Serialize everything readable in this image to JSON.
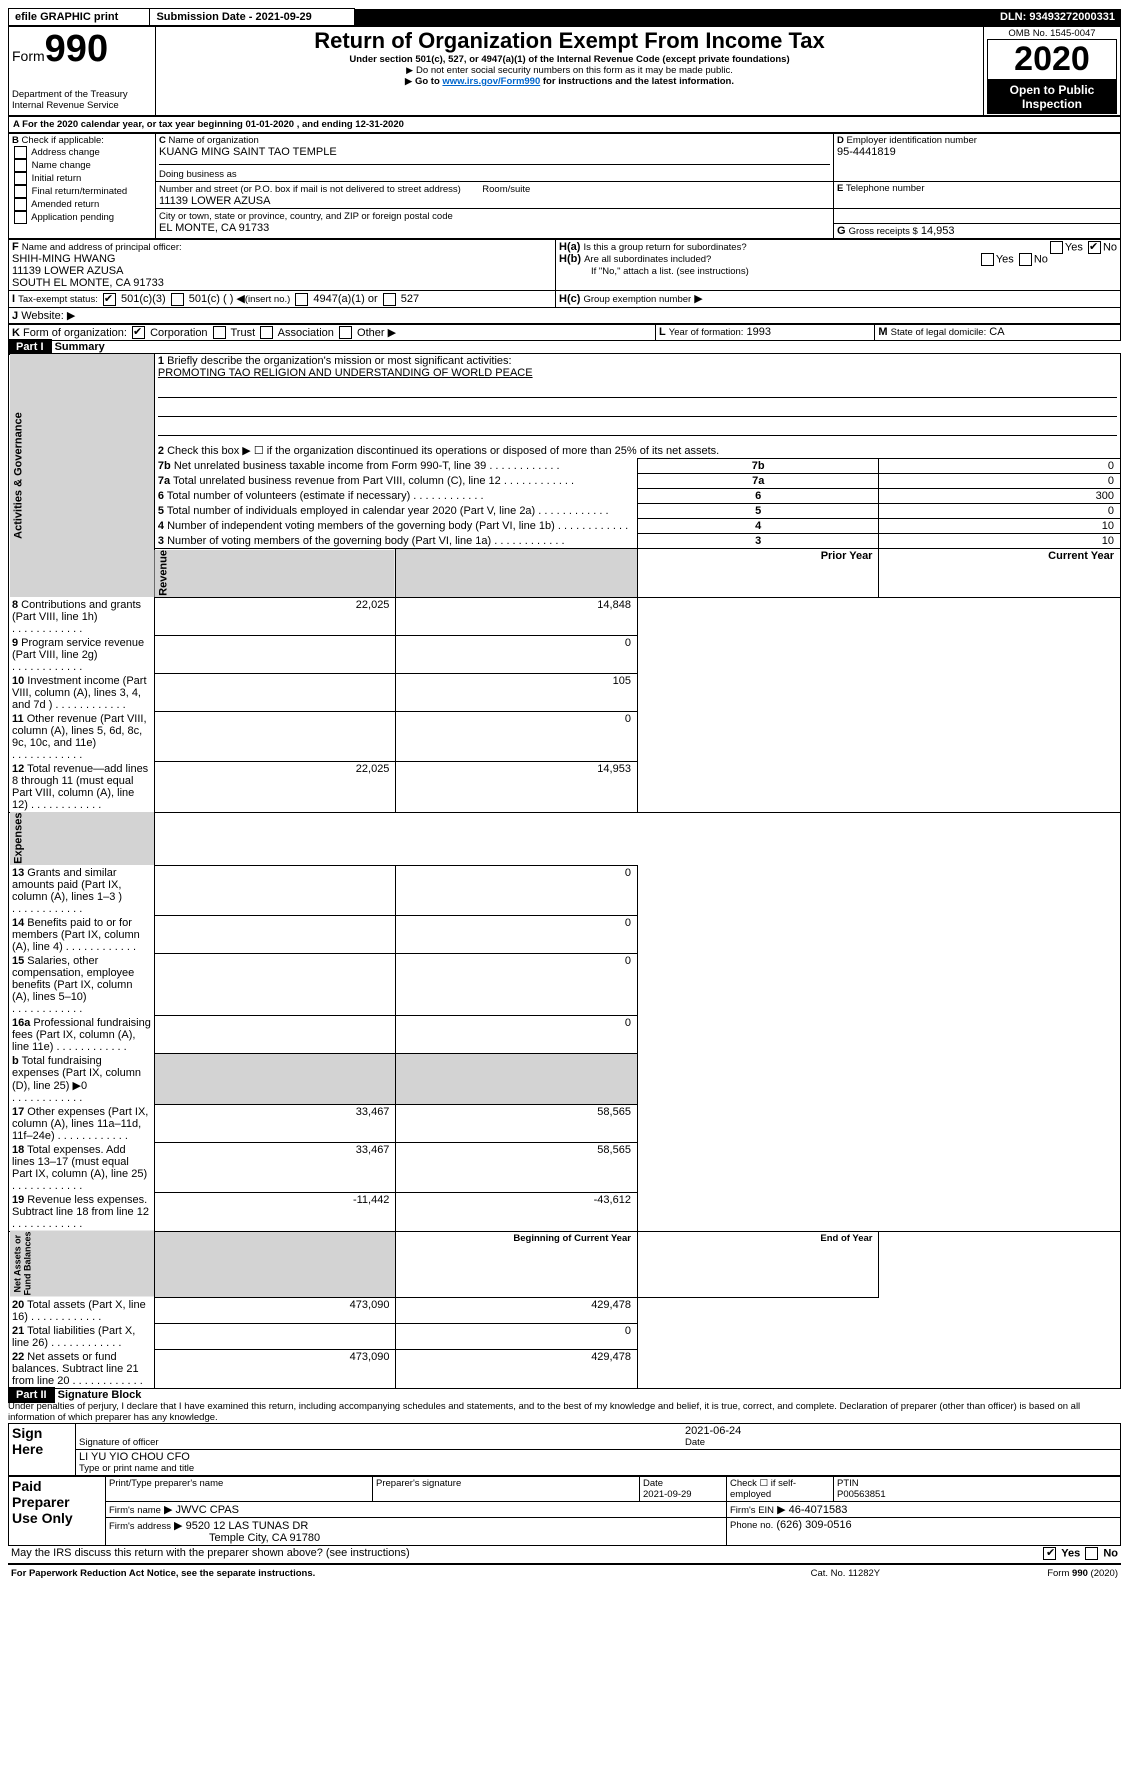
{
  "topbar": {
    "efile": "efile GRAPHIC print",
    "subdate_lbl": "Submission Date - 2021-09-29",
    "dln": "DLN: 93493272000331"
  },
  "header": {
    "form_small": "Form",
    "form_big": "990",
    "title": "Return of Organization Exempt From Income Tax",
    "sub1": "Under section 501(c), 527, or 4947(a)(1) of the Internal Revenue Code (except private foundations)",
    "sub2": "Do not enter social security numbers on this form as it may be made public.",
    "sub3": "Go to www.irs.gov/Form990 for instructions and the latest information.",
    "dept": "Department of the Treasury\nInternal Revenue Service",
    "omb": "OMB No. 1545-0047",
    "year": "2020",
    "open": "Open to Public\nInspection"
  },
  "A": {
    "line": "For the 2020 calendar year, or tax year beginning 01-01-2020    , and ending 12-31-2020"
  },
  "B": {
    "lbl": "Check if applicable:",
    "items": [
      "Address change",
      "Name change",
      "Initial return",
      "Final return/terminated",
      "Amended return",
      "Application pending"
    ]
  },
  "C": {
    "name_lbl": "Name of organization",
    "name": "KUANG MING SAINT TAO TEMPLE",
    "dba_lbl": "Doing business as",
    "addr_lbl": "Number and street (or P.O. box if mail is not delivered to street address)",
    "room_lbl": "Room/suite",
    "addr": "11139 LOWER AZUSA",
    "city_lbl": "City or town, state or province, country, and ZIP or foreign postal code",
    "city": "EL MONTE, CA  91733"
  },
  "D": {
    "lbl": "Employer identification number",
    "val": "95-4441819"
  },
  "E": {
    "lbl": "Telephone number"
  },
  "G": {
    "lbl": "Gross receipts $",
    "val": "14,953"
  },
  "F": {
    "lbl": "Name and address of principal officer:",
    "name": "SHIH-MING HWANG",
    "l1": "11139 LOWER AZUSA",
    "l2": "SOUTH EL MONTE, CA  91733"
  },
  "H": {
    "a": "Is this a group return for subordinates?",
    "b": "Are all subordinates included?",
    "bnote": "If \"No,\" attach a list. (see instructions)",
    "c": "Group exemption number"
  },
  "I": {
    "lbl": "Tax-exempt status:",
    "c1": "501(c)(3)",
    "c2": "501(c) (   )",
    "c2note": "(insert no.)",
    "c3": "4947(a)(1) or",
    "c4": "527"
  },
  "J": {
    "lbl": "Website:"
  },
  "K": {
    "lbl": "Form of organization:",
    "c1": "Corporation",
    "c2": "Trust",
    "c3": "Association",
    "c4": "Other"
  },
  "L": {
    "lbl": "Year of formation:",
    "val": "1993"
  },
  "M": {
    "lbl": "State of legal domicile:",
    "val": "CA"
  },
  "partI": {
    "hdr": "Part I",
    "title": "Summary"
  },
  "summary": {
    "q1": "Briefly describe the organization's mission or most significant activities:",
    "mission": "PROMOTING TAO RELIGION AND UNDERSTANDING OF WORLD PEACE",
    "q2": "Check this box ▶ ☐  if the organization discontinued its operations or disposed of more than 25% of its net assets.",
    "rows_gov": [
      {
        "n": "3",
        "t": "Number of voting members of the governing body (Part VI, line 1a)",
        "v": "10"
      },
      {
        "n": "4",
        "t": "Number of independent voting members of the governing body (Part VI, line 1b)",
        "v": "10"
      },
      {
        "n": "5",
        "t": "Total number of individuals employed in calendar year 2020 (Part V, line 2a)",
        "v": "0"
      },
      {
        "n": "6",
        "t": "Total number of volunteers (estimate if necessary)",
        "v": "300"
      },
      {
        "n": "7a",
        "t": "Total unrelated business revenue from Part VIII, column (C), line 12",
        "v": "0"
      },
      {
        "n": "7b",
        "t": "Net unrelated business taxable income from Form 990-T, line 39",
        "v": "0"
      }
    ],
    "col_py": "Prior Year",
    "col_cy": "Current Year",
    "rows_rev": [
      {
        "n": "8",
        "t": "Contributions and grants (Part VIII, line 1h)",
        "py": "22,025",
        "cy": "14,848"
      },
      {
        "n": "9",
        "t": "Program service revenue (Part VIII, line 2g)",
        "py": "",
        "cy": "0"
      },
      {
        "n": "10",
        "t": "Investment income (Part VIII, column (A), lines 3, 4, and 7d )",
        "py": "",
        "cy": "105"
      },
      {
        "n": "11",
        "t": "Other revenue (Part VIII, column (A), lines 5, 6d, 8c, 9c, 10c, and 11e)",
        "py": "",
        "cy": "0"
      },
      {
        "n": "12",
        "t": "Total revenue—add lines 8 through 11 (must equal Part VIII, column (A), line 12)",
        "py": "22,025",
        "cy": "14,953"
      }
    ],
    "rows_exp": [
      {
        "n": "13",
        "t": "Grants and similar amounts paid (Part IX, column (A), lines 1–3 )",
        "py": "",
        "cy": "0"
      },
      {
        "n": "14",
        "t": "Benefits paid to or for members (Part IX, column (A), line 4)",
        "py": "",
        "cy": "0"
      },
      {
        "n": "15",
        "t": "Salaries, other compensation, employee benefits (Part IX, column (A), lines 5–10)",
        "py": "",
        "cy": "0"
      },
      {
        "n": "16a",
        "t": "Professional fundraising fees (Part IX, column (A), line 11e)",
        "py": "",
        "cy": "0"
      },
      {
        "n": "b",
        "t": "Total fundraising expenses (Part IX, column (D), line 25) ▶0",
        "py": "shade",
        "cy": "shade"
      },
      {
        "n": "17",
        "t": "Other expenses (Part IX, column (A), lines 11a–11d, 11f–24e)",
        "py": "33,467",
        "cy": "58,565"
      },
      {
        "n": "18",
        "t": "Total expenses. Add lines 13–17 (must equal Part IX, column (A), line 25)",
        "py": "33,467",
        "cy": "58,565"
      },
      {
        "n": "19",
        "t": "Revenue less expenses. Subtract line 18 from line 12",
        "py": "-11,442",
        "cy": "-43,612"
      }
    ],
    "col_by": "Beginning of Current Year",
    "col_ey": "End of Year",
    "rows_na": [
      {
        "n": "20",
        "t": "Total assets (Part X, line 16)",
        "py": "473,090",
        "cy": "429,478"
      },
      {
        "n": "21",
        "t": "Total liabilities (Part X, line 26)",
        "py": "",
        "cy": "0"
      },
      {
        "n": "22",
        "t": "Net assets or fund balances. Subtract line 21 from line 20",
        "py": "473,090",
        "cy": "429,478"
      }
    ]
  },
  "partII": {
    "hdr": "Part II",
    "title": "Signature Block",
    "decl": "Under penalties of perjury, I declare that I have examined this return, including accompanying schedules and statements, and to the best of my knowledge and belief, it is true, correct, and complete. Declaration of preparer (other than officer) is based on all information of which preparer has any knowledge."
  },
  "sign": {
    "here": "Sign\nHere",
    "sig_lbl": "Signature of officer",
    "date": "2021-06-24",
    "date_lbl": "Date",
    "name": "LI YU YIO CHOU  CFO",
    "name_lbl": "Type or print name and title"
  },
  "paid": {
    "lbl": "Paid\nPreparer\nUse Only",
    "h1": "Print/Type preparer's name",
    "h2": "Preparer's signature",
    "h3": "Date",
    "h3v": "2021-09-29",
    "h4": "Check ☐ if self-employed",
    "h5": "PTIN",
    "h5v": "P00563851",
    "firm_lbl": "Firm's name",
    "firm": "JWVC CPAS",
    "ein_lbl": "Firm's EIN",
    "ein": "46-4071583",
    "addr_lbl": "Firm's address",
    "addr": "9520 12 LAS TUNAS DR",
    "city": "Temple City, CA  91780",
    "phone_lbl": "Phone no.",
    "phone": "(626) 309-0516"
  },
  "footer": {
    "discuss": "May the IRS discuss this return with the preparer shown above? (see instructions)",
    "paperwork": "For Paperwork Reduction Act Notice, see the separate instructions.",
    "cat": "Cat. No. 11282Y",
    "form": "Form 990 (2020)"
  }
}
